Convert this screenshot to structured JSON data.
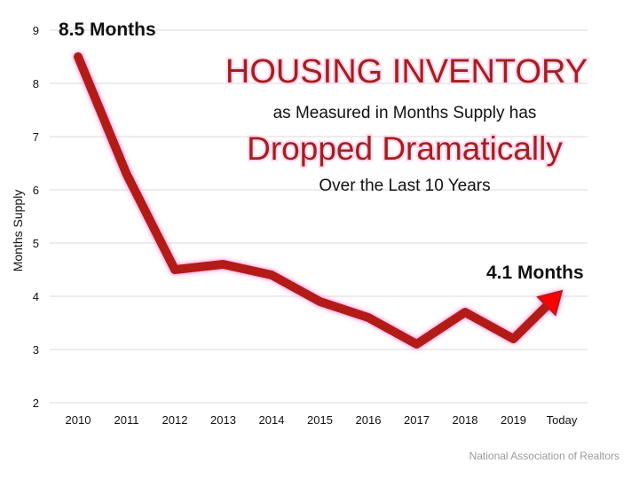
{
  "chart_data": {
    "type": "line",
    "title_lines": [
      "HOUSING INVENTORY",
      "as Measured in Months Supply has",
      "Dropped Dramatically",
      "Over the Last 10 Years"
    ],
    "xlabel": "",
    "ylabel": "Months Supply",
    "categories": [
      "2010",
      "2011",
      "2012",
      "2013",
      "2014",
      "2015",
      "2016",
      "2017",
      "2018",
      "2019",
      "Today"
    ],
    "yticks": [
      "2",
      "3",
      "4",
      "5",
      "6",
      "7",
      "8",
      "9"
    ],
    "ylim": [
      2,
      9
    ],
    "grid": true,
    "series": [
      {
        "values": [
          8.5,
          6.3,
          4.5,
          4.6,
          4.4,
          3.9,
          3.6,
          3.1,
          3.7,
          3.2,
          4.1
        ]
      }
    ],
    "annotations": [
      {
        "text": "8.5 Months",
        "category": "2010",
        "value": 8.5
      },
      {
        "text": "4.1 Months",
        "category": "Today",
        "value": 4.1
      }
    ],
    "source": "National Association of Realtors",
    "colors": {
      "line": "#b31b17",
      "arrow_head": "#ff0000",
      "title": "#a3201c",
      "grid": "#d9d9d9"
    }
  }
}
